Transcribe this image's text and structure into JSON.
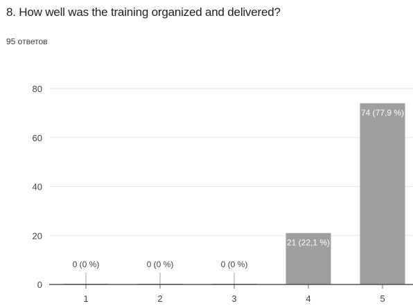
{
  "question": {
    "title": "8. How well was the training organized and delivered?",
    "response_count": "95 ответов"
  },
  "colors": {
    "bar": "#9e9e9e",
    "grid": "#e6e6e6",
    "axis": "#333333",
    "label_inside": "#ffffff",
    "label_outside": "#424242"
  },
  "chart_data": {
    "type": "bar",
    "categories": [
      "1",
      "2",
      "3",
      "4",
      "5"
    ],
    "values": [
      0,
      0,
      0,
      21,
      74
    ],
    "data_labels": [
      "0 (0 %)",
      "0 (0 %)",
      "0 (0 %)",
      "21 (22,1 %)",
      "74 (77,9 %)"
    ],
    "ylim": [
      0,
      80
    ],
    "yticks": [
      0,
      20,
      40,
      60,
      80
    ],
    "grid": true,
    "legend": "none",
    "title": "",
    "xlabel": "",
    "ylabel": ""
  }
}
